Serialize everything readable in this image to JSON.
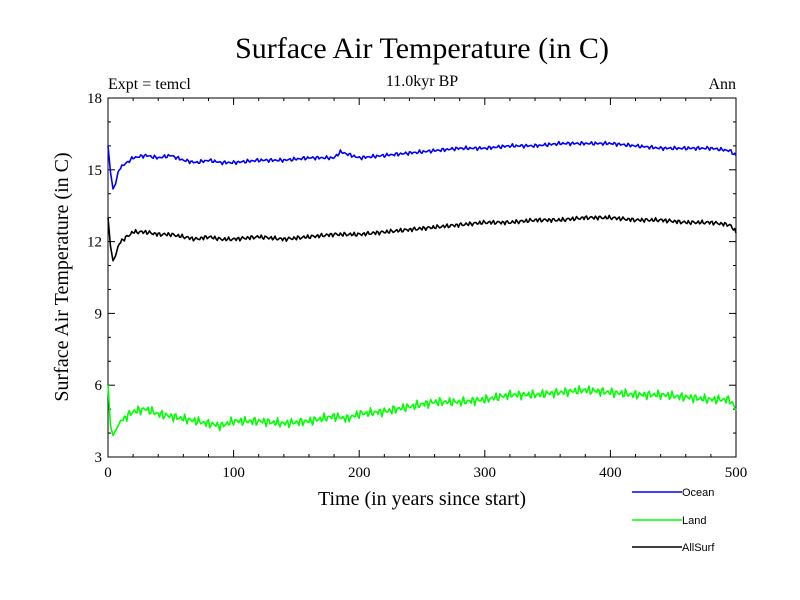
{
  "chart_data": {
    "type": "line",
    "title": "Surface Air Temperature (in C)",
    "subtitle": "11.0kyr BP",
    "left_label": "Expt = temcl",
    "right_label": "Ann",
    "xlabel": "Time (in years since start)",
    "ylabel": "Surface Air Temperature (in C)",
    "xlim": [
      0,
      500
    ],
    "ylim": [
      3,
      18
    ],
    "xticks": [
      0,
      100,
      200,
      300,
      400,
      500
    ],
    "yticks": [
      3,
      6,
      9,
      12,
      15,
      18
    ],
    "grid": false,
    "legend_position": "bottom-right",
    "series": [
      {
        "name": "Ocean",
        "color": "#0000ff",
        "points": [
          [
            0,
            16.0
          ],
          [
            2,
            14.9
          ],
          [
            4,
            14.2
          ],
          [
            6,
            14.4
          ],
          [
            8,
            14.9
          ],
          [
            10,
            15.1
          ],
          [
            15,
            15.3
          ],
          [
            20,
            15.5
          ],
          [
            30,
            15.6
          ],
          [
            40,
            15.5
          ],
          [
            50,
            15.6
          ],
          [
            60,
            15.4
          ],
          [
            70,
            15.3
          ],
          [
            80,
            15.4
          ],
          [
            90,
            15.3
          ],
          [
            100,
            15.3
          ],
          [
            120,
            15.4
          ],
          [
            140,
            15.4
          ],
          [
            160,
            15.5
          ],
          [
            180,
            15.5
          ],
          [
            185,
            15.75
          ],
          [
            200,
            15.5
          ],
          [
            220,
            15.6
          ],
          [
            240,
            15.7
          ],
          [
            260,
            15.8
          ],
          [
            280,
            15.9
          ],
          [
            300,
            15.9
          ],
          [
            320,
            16.0
          ],
          [
            340,
            16.0
          ],
          [
            360,
            16.1
          ],
          [
            380,
            16.1
          ],
          [
            400,
            16.1
          ],
          [
            420,
            16.0
          ],
          [
            440,
            15.9
          ],
          [
            460,
            15.9
          ],
          [
            480,
            15.9
          ],
          [
            495,
            15.8
          ],
          [
            500,
            15.6
          ]
        ]
      },
      {
        "name": "Land",
        "color": "#00ff00",
        "points": [
          [
            0,
            6.0
          ],
          [
            2,
            4.3
          ],
          [
            4,
            3.9
          ],
          [
            6,
            4.1
          ],
          [
            8,
            4.3
          ],
          [
            10,
            4.5
          ],
          [
            20,
            4.9
          ],
          [
            30,
            5.0
          ],
          [
            40,
            4.8
          ],
          [
            50,
            4.7
          ],
          [
            60,
            4.6
          ],
          [
            70,
            4.5
          ],
          [
            80,
            4.4
          ],
          [
            90,
            4.3
          ],
          [
            100,
            4.5
          ],
          [
            120,
            4.5
          ],
          [
            140,
            4.4
          ],
          [
            160,
            4.5
          ],
          [
            180,
            4.7
          ],
          [
            190,
            4.6
          ],
          [
            200,
            4.8
          ],
          [
            220,
            4.9
          ],
          [
            240,
            5.1
          ],
          [
            260,
            5.3
          ],
          [
            280,
            5.3
          ],
          [
            300,
            5.4
          ],
          [
            320,
            5.6
          ],
          [
            340,
            5.6
          ],
          [
            360,
            5.7
          ],
          [
            380,
            5.8
          ],
          [
            400,
            5.7
          ],
          [
            420,
            5.6
          ],
          [
            440,
            5.6
          ],
          [
            460,
            5.5
          ],
          [
            480,
            5.4
          ],
          [
            495,
            5.4
          ],
          [
            500,
            5.0
          ]
        ]
      },
      {
        "name": "AllSurf",
        "color": "#000000",
        "points": [
          [
            0,
            13.0
          ],
          [
            2,
            11.8
          ],
          [
            4,
            11.2
          ],
          [
            6,
            11.4
          ],
          [
            8,
            11.8
          ],
          [
            10,
            12.0
          ],
          [
            20,
            12.4
          ],
          [
            30,
            12.4
          ],
          [
            40,
            12.3
          ],
          [
            50,
            12.3
          ],
          [
            60,
            12.2
          ],
          [
            70,
            12.1
          ],
          [
            80,
            12.2
          ],
          [
            90,
            12.1
          ],
          [
            100,
            12.1
          ],
          [
            120,
            12.2
          ],
          [
            140,
            12.1
          ],
          [
            160,
            12.2
          ],
          [
            180,
            12.3
          ],
          [
            200,
            12.3
          ],
          [
            220,
            12.4
          ],
          [
            240,
            12.5
          ],
          [
            260,
            12.6
          ],
          [
            280,
            12.7
          ],
          [
            300,
            12.8
          ],
          [
            320,
            12.8
          ],
          [
            340,
            12.9
          ],
          [
            360,
            12.9
          ],
          [
            380,
            13.0
          ],
          [
            400,
            13.0
          ],
          [
            420,
            12.9
          ],
          [
            440,
            12.9
          ],
          [
            460,
            12.8
          ],
          [
            480,
            12.8
          ],
          [
            495,
            12.7
          ],
          [
            500,
            12.4
          ]
        ]
      }
    ]
  }
}
